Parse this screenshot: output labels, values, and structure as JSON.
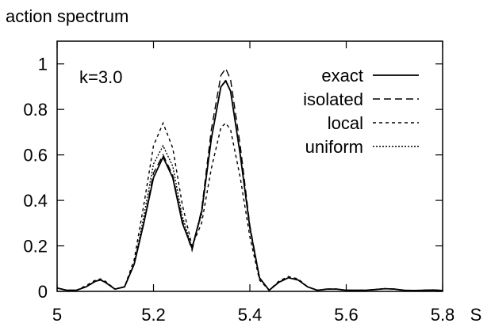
{
  "chart_data": {
    "type": "line",
    "title": "action spectrum",
    "xlabel": "S",
    "ylabel": "",
    "xlim": [
      5,
      5.8
    ],
    "ylim": [
      0,
      1.1
    ],
    "xticks": [
      "5",
      "5.2",
      "5.4",
      "5.6",
      "5.8"
    ],
    "yticks": [
      "0",
      "0.2",
      "0.4",
      "0.6",
      "0.8",
      "1"
    ],
    "grid": false,
    "legend_position": "top-right",
    "annotation": "k=3.0",
    "x": [
      5.0,
      5.02,
      5.04,
      5.06,
      5.08,
      5.09,
      5.1,
      5.12,
      5.14,
      5.16,
      5.18,
      5.2,
      5.22,
      5.24,
      5.26,
      5.28,
      5.3,
      5.32,
      5.34,
      5.35,
      5.36,
      5.38,
      5.4,
      5.42,
      5.44,
      5.46,
      5.48,
      5.5,
      5.52,
      5.54,
      5.56,
      5.58,
      5.6,
      5.62,
      5.64,
      5.66,
      5.68,
      5.7,
      5.72,
      5.74,
      5.76,
      5.78,
      5.8
    ],
    "series": [
      {
        "name": "exact",
        "dash": "",
        "values": [
          0.015,
          0.005,
          0.005,
          0.02,
          0.045,
          0.05,
          0.04,
          0.01,
          0.02,
          0.12,
          0.3,
          0.5,
          0.59,
          0.5,
          0.3,
          0.19,
          0.35,
          0.67,
          0.9,
          0.925,
          0.88,
          0.6,
          0.28,
          0.06,
          0.005,
          0.04,
          0.06,
          0.05,
          0.02,
          0.005,
          0.01,
          0.01,
          0.005,
          0.005,
          0.005,
          0.008,
          0.012,
          0.01,
          0.005,
          0.004,
          0.005,
          0.006,
          0.004
        ]
      },
      {
        "name": "isolated",
        "dash": "9,5",
        "values": [
          0.015,
          0.005,
          0.005,
          0.02,
          0.045,
          0.05,
          0.04,
          0.01,
          0.02,
          0.12,
          0.3,
          0.52,
          0.6,
          0.51,
          0.31,
          0.18,
          0.36,
          0.71,
          0.95,
          0.98,
          0.93,
          0.64,
          0.29,
          0.06,
          0.005,
          0.04,
          0.06,
          0.05,
          0.02,
          0.005,
          0.01,
          0.01,
          0.005,
          0.005,
          0.005,
          0.008,
          0.012,
          0.01,
          0.005,
          0.004,
          0.005,
          0.006,
          0.004
        ]
      },
      {
        "name": "local",
        "dash": "4,4",
        "values": [
          0.015,
          0.005,
          0.005,
          0.025,
          0.05,
          0.055,
          0.045,
          0.01,
          0.02,
          0.14,
          0.38,
          0.64,
          0.74,
          0.63,
          0.38,
          0.2,
          0.3,
          0.54,
          0.72,
          0.74,
          0.71,
          0.5,
          0.24,
          0.05,
          0.005,
          0.045,
          0.065,
          0.055,
          0.02,
          0.005,
          0.01,
          0.01,
          0.005,
          0.005,
          0.005,
          0.008,
          0.012,
          0.01,
          0.005,
          0.004,
          0.005,
          0.006,
          0.004
        ]
      },
      {
        "name": "uniform",
        "dash": "2,2",
        "values": [
          0.015,
          0.005,
          0.005,
          0.02,
          0.045,
          0.05,
          0.04,
          0.01,
          0.02,
          0.12,
          0.33,
          0.56,
          0.64,
          0.55,
          0.33,
          0.19,
          0.34,
          0.67,
          0.9,
          0.93,
          0.88,
          0.6,
          0.28,
          0.06,
          0.005,
          0.04,
          0.06,
          0.05,
          0.02,
          0.005,
          0.01,
          0.01,
          0.005,
          0.005,
          0.005,
          0.008,
          0.012,
          0.01,
          0.005,
          0.004,
          0.005,
          0.006,
          0.004
        ]
      }
    ]
  }
}
